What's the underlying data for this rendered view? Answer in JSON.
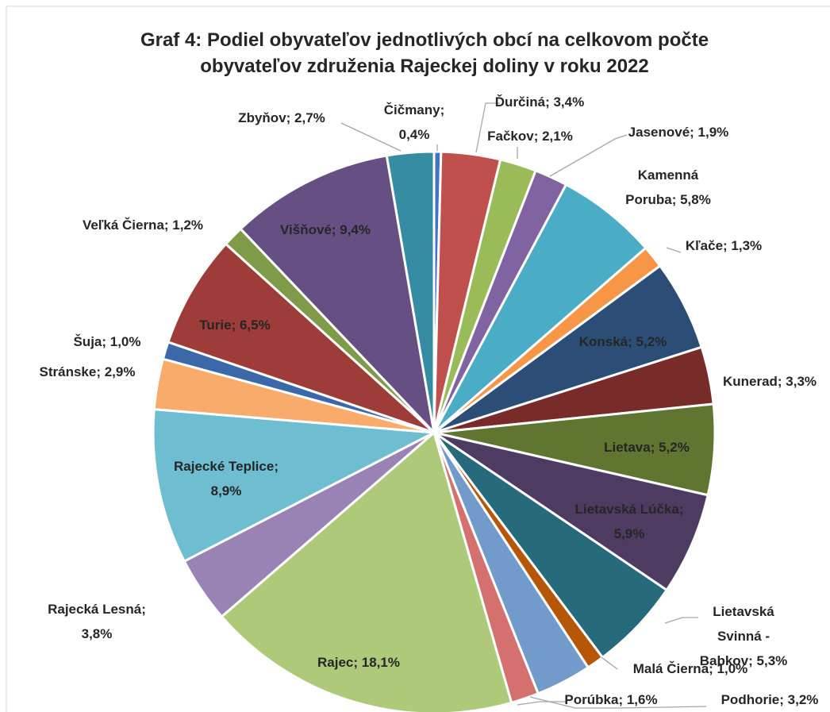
{
  "chart_data": {
    "type": "pie",
    "title": "Graf 4: Podiel obyvateľov jednotlivých obcí na celkovom počte obyvateľov združenia Rajeckej doliny v roku 2022",
    "values": [
      0.4,
      3.4,
      2.1,
      1.9,
      5.8,
      1.3,
      5.2,
      3.3,
      5.2,
      5.9,
      5.3,
      1.0,
      3.2,
      1.6,
      18.1,
      3.8,
      8.9,
      2.9,
      1.0,
      6.5,
      1.2,
      9.4,
      2.7
    ],
    "value_labels": [
      "Čičmany; 0,4%",
      "Ďurčiná; 3,4%",
      "Fačkov; 2,1%",
      "Jasenové; 1,9%",
      "Kamenná Poruba; 5,8%",
      "Kľače; 1,3%",
      "Konská; 5,2%",
      "Kunerad; 3,3%",
      "Lietava; 5,2%",
      "Lietavská Lúčka; 5,9%",
      "Lietavská Svinná - Babkov; 5,3%",
      "Malá Čierna; 1,0%",
      "Podhorie; 3,2%",
      "Porúbka; 1,6%",
      "Rajec; 18,1%",
      "Rajecká Lesná; 3,8%",
      "Rajecké Teplice; 8,9%",
      "Stránske; 2,9%",
      "Šuja; 1,0%",
      "Turie; 6,5%",
      "Veľká Čierna; 1,2%",
      "Višňové; 9,4%",
      "Zbyňov; 2,7%"
    ],
    "colors": [
      "#4472c4",
      "#c0504d",
      "#9bbb59",
      "#8064a2",
      "#4bacc6",
      "#f79646",
      "#2c4d75",
      "#772c2a",
      "#5f7530",
      "#4d3b62",
      "#276a7c",
      "#b65708",
      "#729aca",
      "#d4716e",
      "#afc97a",
      "#9983b5",
      "#6fbdd1",
      "#f9ab6b",
      "#3a68a8",
      "#9e3c39",
      "#7f9a48",
      "#664f82",
      "#358ca3"
    ]
  }
}
